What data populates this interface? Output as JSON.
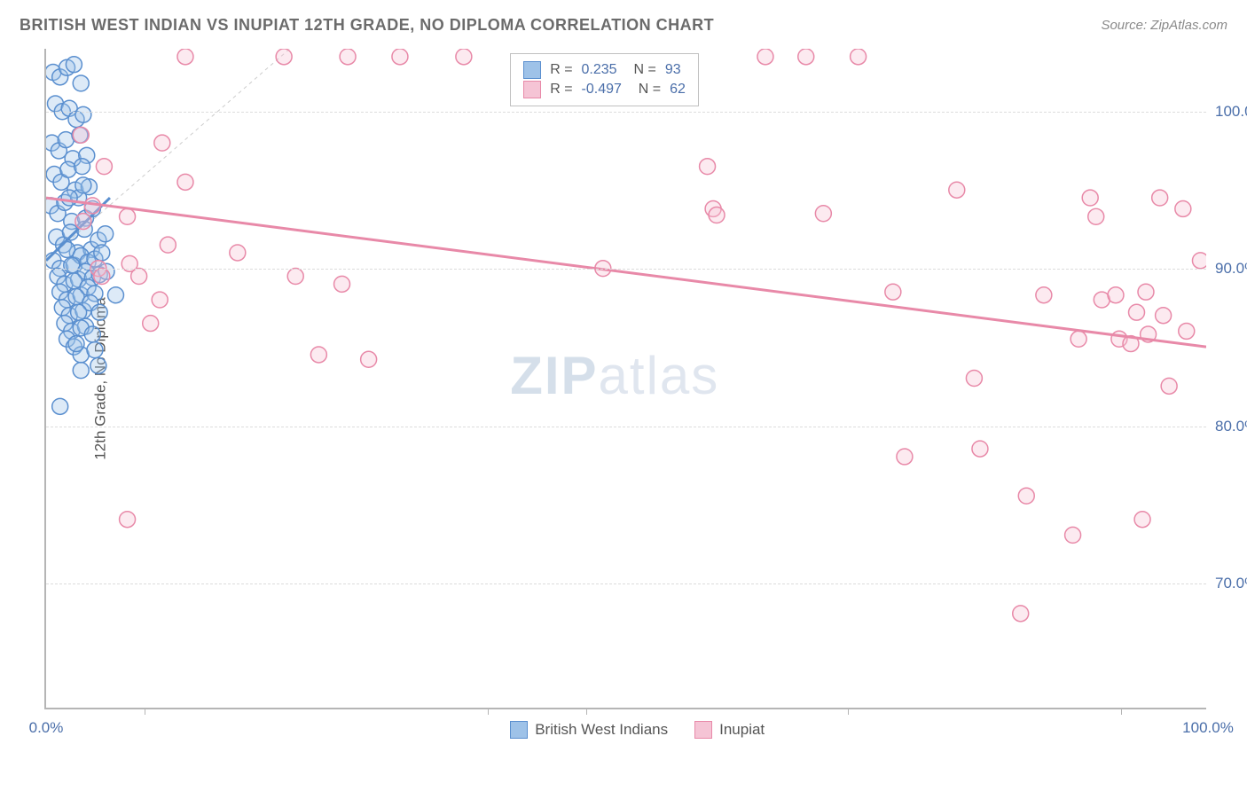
{
  "title": "BRITISH WEST INDIAN VS INUPIAT 12TH GRADE, NO DIPLOMA CORRELATION CHART",
  "source": "Source: ZipAtlas.com",
  "y_axis_title": "12th Grade, No Diploma",
  "watermark": {
    "bold": "ZIP",
    "thin": "atlas"
  },
  "chart": {
    "type": "scatter",
    "background_color": "#ffffff",
    "grid_color": "#dcdcdc",
    "axis_color": "#b5b5b5",
    "label_color": "#4a6ea9",
    "label_fontsize": 17,
    "title_color": "#6b6b6b",
    "title_fontsize": 18,
    "xlim": [
      0,
      100
    ],
    "ylim": [
      62,
      104
    ],
    "x_ticks": [
      0,
      100
    ],
    "x_tick_minors": [
      8.5,
      38,
      46.5,
      69,
      92.5
    ],
    "y_ticks": [
      70,
      80,
      90,
      100
    ],
    "y_tick_suffix": "%",
    "x_tick_suffix": "%",
    "marker_radius": 9,
    "marker_stroke_width": 1.5,
    "marker_fill_opacity": 0.35,
    "trend_line_width": 3,
    "diag_line": {
      "x1": 0,
      "y1": 90.5,
      "x2": 21,
      "y2": 104,
      "color": "#cccccc",
      "dash": "4,4",
      "width": 1
    },
    "series": [
      {
        "name": "British West Indians",
        "color_stroke": "#5a8fcf",
        "color_fill": "#9ec2e8",
        "R": "0.235",
        "N": "93",
        "trend": {
          "x1": 0,
          "y1": 90.5,
          "x2": 5.5,
          "y2": 94.5
        },
        "points": [
          [
            0.6,
            102.5
          ],
          [
            1.2,
            102.2
          ],
          [
            1.8,
            102.8
          ],
          [
            2.4,
            103
          ],
          [
            3.0,
            101.8
          ],
          [
            0.8,
            100.5
          ],
          [
            1.4,
            100
          ],
          [
            2.0,
            100.2
          ],
          [
            2.6,
            99.5
          ],
          [
            3.2,
            99.8
          ],
          [
            0.5,
            98
          ],
          [
            1.1,
            97.5
          ],
          [
            1.7,
            98.2
          ],
          [
            2.3,
            97
          ],
          [
            2.9,
            98.5
          ],
          [
            3.5,
            97.2
          ],
          [
            0.7,
            96
          ],
          [
            1.3,
            95.5
          ],
          [
            1.9,
            96.3
          ],
          [
            2.5,
            95
          ],
          [
            3.1,
            96.5
          ],
          [
            3.7,
            95.2
          ],
          [
            0.4,
            94
          ],
          [
            1.0,
            93.5
          ],
          [
            1.6,
            94.2
          ],
          [
            2.2,
            93
          ],
          [
            2.8,
            94.5
          ],
          [
            3.4,
            93.2
          ],
          [
            4.0,
            93.8
          ],
          [
            0.9,
            92
          ],
          [
            1.5,
            91.5
          ],
          [
            2.1,
            92.3
          ],
          [
            2.7,
            91
          ],
          [
            3.3,
            92.5
          ],
          [
            3.9,
            91.2
          ],
          [
            4.5,
            91.8
          ],
          [
            5.1,
            92.2
          ],
          [
            0.6,
            90.5
          ],
          [
            1.2,
            90
          ],
          [
            1.8,
            91.2
          ],
          [
            2.4,
            90.2
          ],
          [
            3.0,
            90.8
          ],
          [
            3.6,
            90.4
          ],
          [
            4.2,
            90.6
          ],
          [
            4.8,
            91
          ],
          [
            1.0,
            89.5
          ],
          [
            1.6,
            89
          ],
          [
            2.2,
            90.2
          ],
          [
            2.8,
            89.3
          ],
          [
            3.4,
            89.8
          ],
          [
            4.0,
            89.4
          ],
          [
            4.6,
            89.6
          ],
          [
            1.2,
            88.5
          ],
          [
            1.8,
            88
          ],
          [
            2.4,
            89.2
          ],
          [
            3.0,
            88.3
          ],
          [
            3.6,
            88.8
          ],
          [
            4.2,
            88.4
          ],
          [
            5.2,
            89.8
          ],
          [
            1.4,
            87.5
          ],
          [
            2.0,
            87
          ],
          [
            2.6,
            88.2
          ],
          [
            3.2,
            87.3
          ],
          [
            3.8,
            87.8
          ],
          [
            1.6,
            86.5
          ],
          [
            2.2,
            86
          ],
          [
            2.8,
            87.2
          ],
          [
            3.4,
            86.3
          ],
          [
            1.8,
            85.5
          ],
          [
            2.4,
            85
          ],
          [
            3.0,
            86.2
          ],
          [
            4.0,
            85.8
          ],
          [
            3.0,
            84.5
          ],
          [
            4.2,
            84.8
          ],
          [
            2.6,
            85.2
          ],
          [
            4.6,
            87.2
          ],
          [
            6.0,
            88.3
          ],
          [
            3.0,
            83.5
          ],
          [
            4.5,
            83.8
          ],
          [
            1.2,
            81.2
          ],
          [
            2.0,
            94.5
          ],
          [
            3.2,
            95.3
          ]
        ]
      },
      {
        "name": "Inupiat",
        "color_stroke": "#e889a8",
        "color_fill": "#f5c4d5",
        "R": "-0.497",
        "N": "62",
        "trend": {
          "x1": 0,
          "y1": 94.5,
          "x2": 100,
          "y2": 85
        },
        "points": [
          [
            12,
            103.5
          ],
          [
            20.5,
            103.5
          ],
          [
            26,
            103.5
          ],
          [
            30.5,
            103.5
          ],
          [
            36,
            103.5
          ],
          [
            62,
            103.5
          ],
          [
            65.5,
            103.5
          ],
          [
            70,
            103.5
          ],
          [
            3,
            98.5
          ],
          [
            10,
            98
          ],
          [
            5,
            96.5
          ],
          [
            12,
            95.5
          ],
          [
            4,
            94
          ],
          [
            3.2,
            93
          ],
          [
            7,
            93.3
          ],
          [
            10.5,
            91.5
          ],
          [
            16.5,
            91
          ],
          [
            4.5,
            90
          ],
          [
            4.8,
            89.5
          ],
          [
            7.2,
            90.3
          ],
          [
            8,
            89.5
          ],
          [
            21.5,
            89.5
          ],
          [
            25.5,
            89
          ],
          [
            9,
            86.5
          ],
          [
            9.8,
            88
          ],
          [
            23.5,
            84.5
          ],
          [
            27.8,
            84.2
          ],
          [
            7,
            74
          ],
          [
            48,
            90
          ],
          [
            57,
            96.5
          ],
          [
            57.5,
            93.8
          ],
          [
            57.8,
            93.4
          ],
          [
            67,
            93.5
          ],
          [
            73,
            88.5
          ],
          [
            74,
            78
          ],
          [
            78.5,
            95
          ],
          [
            80,
            83
          ],
          [
            80.5,
            78.5
          ],
          [
            84,
            68
          ],
          [
            84.5,
            75.5
          ],
          [
            86,
            88.3
          ],
          [
            88.5,
            73
          ],
          [
            89,
            85.5
          ],
          [
            90,
            94.5
          ],
          [
            90.5,
            93.3
          ],
          [
            91,
            88
          ],
          [
            92.2,
            88.3
          ],
          [
            92.5,
            85.5
          ],
          [
            93.5,
            85.2
          ],
          [
            94,
            87.2
          ],
          [
            94.5,
            74
          ],
          [
            94.8,
            88.5
          ],
          [
            95,
            85.8
          ],
          [
            96,
            94.5
          ],
          [
            96.3,
            87
          ],
          [
            96.8,
            82.5
          ],
          [
            98,
            93.8
          ],
          [
            98.3,
            86
          ],
          [
            99.5,
            90.5
          ]
        ]
      }
    ]
  }
}
